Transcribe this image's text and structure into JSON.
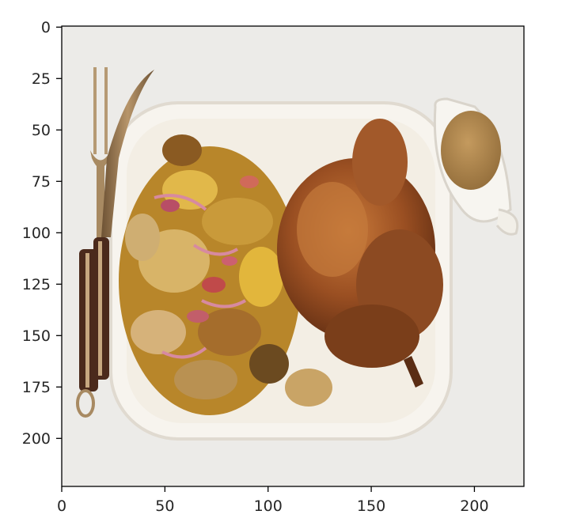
{
  "image": {
    "description_icon": "roast-chicken-dinner-photo",
    "x_range": [
      0,
      224
    ],
    "y_range": [
      0,
      224
    ]
  },
  "axes": {
    "xticks": [
      {
        "value": 0,
        "label": "0"
      },
      {
        "value": 50,
        "label": "50"
      },
      {
        "value": 100,
        "label": "100"
      },
      {
        "value": 150,
        "label": "150"
      },
      {
        "value": 200,
        "label": "200"
      }
    ],
    "yticks": [
      {
        "value": 0,
        "label": "0"
      },
      {
        "value": 25,
        "label": "25"
      },
      {
        "value": 50,
        "label": "50"
      },
      {
        "value": 75,
        "label": "75"
      },
      {
        "value": 100,
        "label": "100"
      },
      {
        "value": 125,
        "label": "125"
      },
      {
        "value": 150,
        "label": "150"
      },
      {
        "value": 175,
        "label": "175"
      },
      {
        "value": 200,
        "label": "200"
      }
    ]
  },
  "colors": {
    "background": "#ececea",
    "plate": "#f7f3ec",
    "chicken": "#9a4f22",
    "gravy": "#a8824c",
    "vegetables": "#b8862a",
    "cutlery": "#8a6a48"
  }
}
